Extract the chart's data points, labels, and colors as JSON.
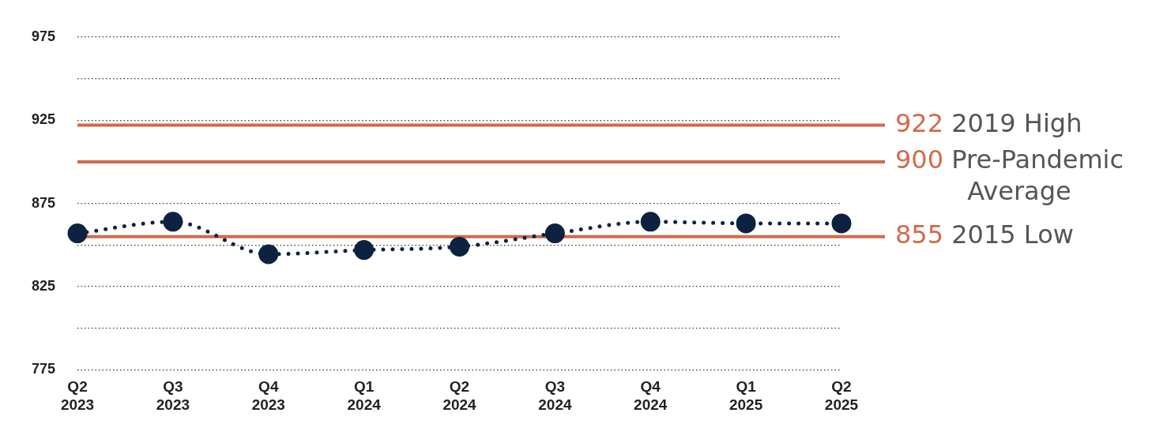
{
  "chart_data": {
    "type": "line",
    "categories": [
      "Q2 2023",
      "Q3 2023",
      "Q4 2023",
      "Q1 2024",
      "Q2 2024",
      "Q3 2024",
      "Q4 2024",
      "Q1 2025",
      "Q2 2025"
    ],
    "series": [
      {
        "color": "#0d2240",
        "values": [
          857,
          864,
          844.5,
          847,
          849,
          857,
          864,
          863,
          863
        ]
      }
    ],
    "ylim": [
      775,
      975
    ],
    "yticks": [
      775,
      {
        "value": 800,
        "label": null
      },
      825,
      {
        "value": 850,
        "label": null
      },
      875,
      {
        "value": 900,
        "label": null
      },
      925,
      {
        "value": 950,
        "label": null
      },
      975
    ],
    "grid": "y",
    "marker": "circle",
    "line_style": "dotted",
    "legend": false,
    "ref_lines": [
      {
        "axis": "y",
        "value": 922,
        "label": "922 2019 High",
        "color": "#d4694a"
      },
      {
        "axis": "y",
        "value": 900,
        "label": "900 Pre-Pandemic Average",
        "color": "#d4694a"
      },
      {
        "axis": "y",
        "value": 855,
        "label": "855 2015 Low",
        "color": "#d4694a"
      }
    ]
  }
}
